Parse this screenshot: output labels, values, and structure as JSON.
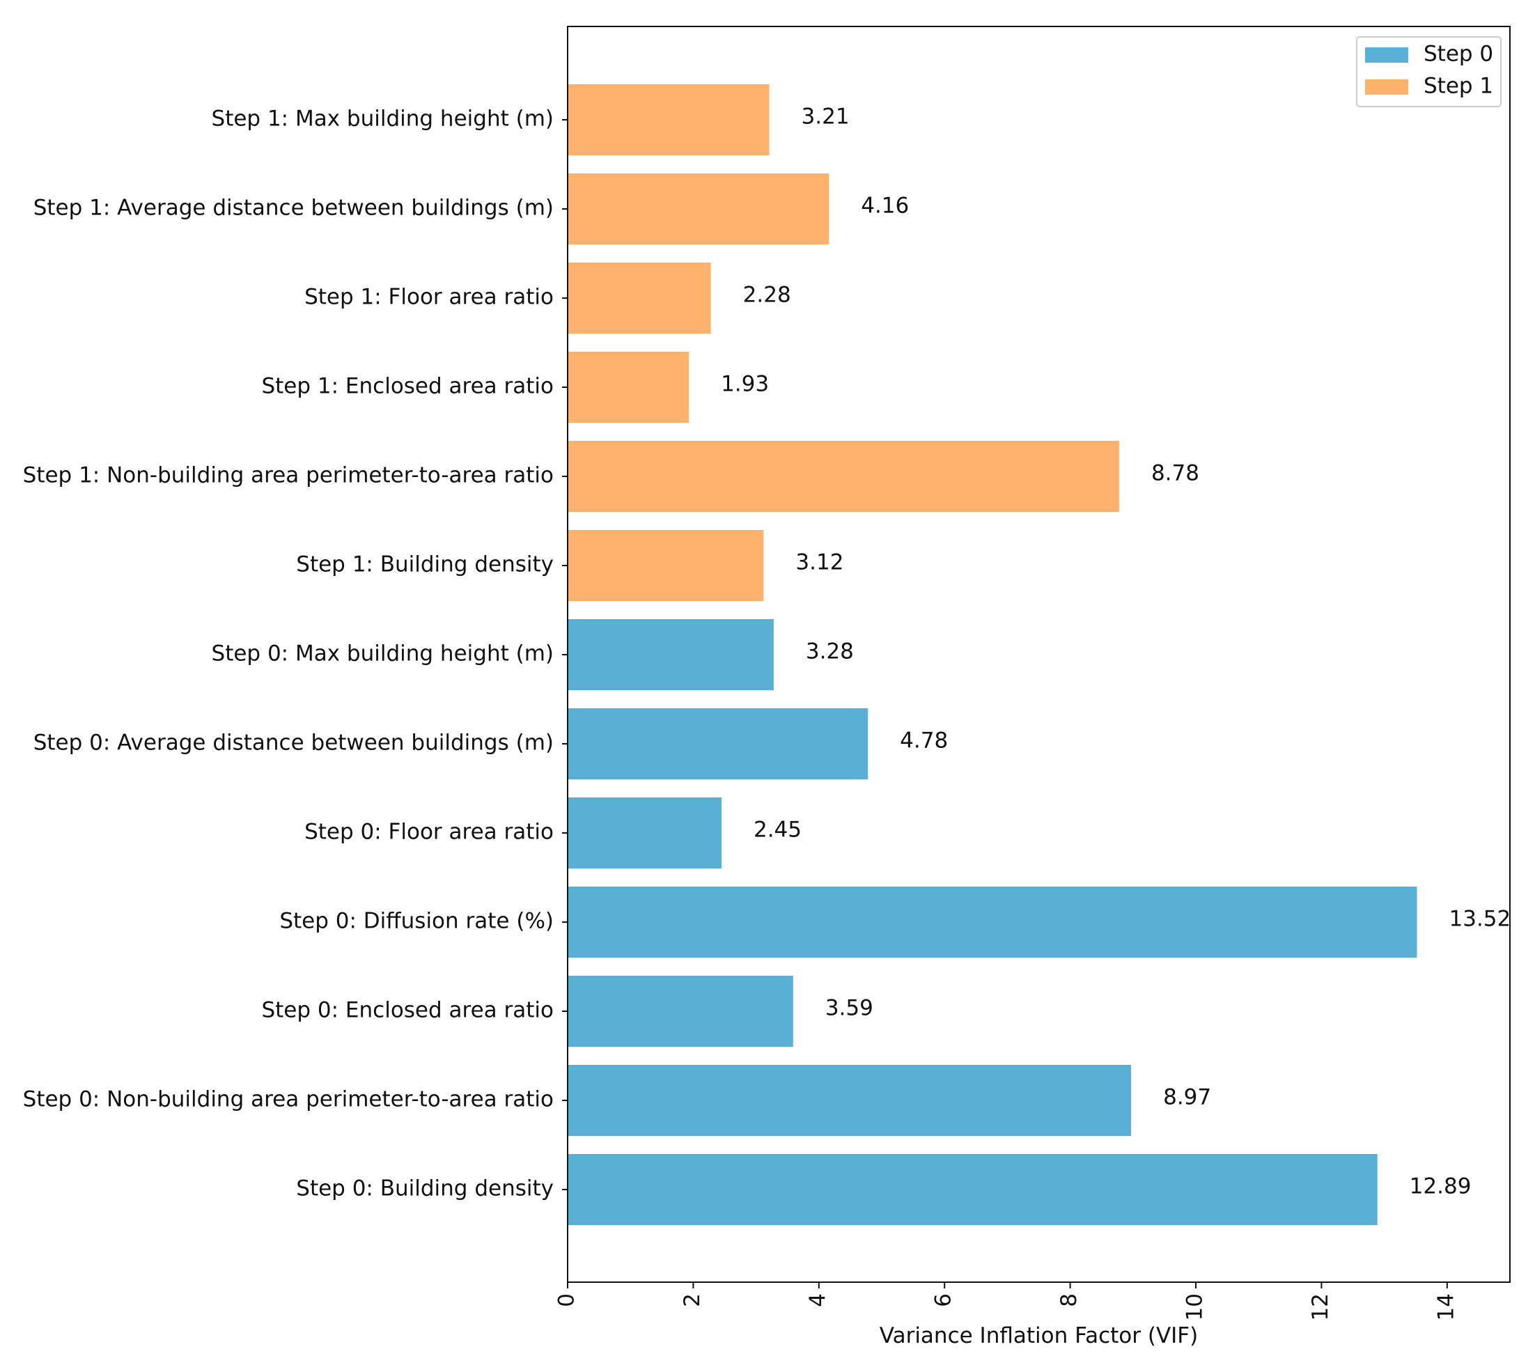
{
  "chart_data": {
    "type": "bar",
    "orientation": "horizontal",
    "title": "",
    "xlabel": "Variance Inflation Factor (VIF)",
    "ylabel": "",
    "xlim": [
      0,
      15
    ],
    "xticks": [
      0,
      2,
      4,
      6,
      8,
      10,
      12,
      14
    ],
    "xtick_labels": [
      "0",
      "2",
      "4",
      "6",
      "8",
      "10",
      "12",
      "14"
    ],
    "grid": false,
    "legend": {
      "position": "top-right",
      "entries": [
        {
          "name": "Step 0",
          "color": "#5aafd4"
        },
        {
          "name": "Step 1",
          "color": "#ffb26e"
        }
      ]
    },
    "bars": [
      {
        "category": "Step 1: Max building height (m)",
        "value": 3.21,
        "value_label": "3.21",
        "series": "Step 1"
      },
      {
        "category": "Step 1: Average distance between buildings (m)",
        "value": 4.16,
        "value_label": "4.16",
        "series": "Step 1"
      },
      {
        "category": "Step 1: Floor area ratio",
        "value": 2.28,
        "value_label": "2.28",
        "series": "Step 1"
      },
      {
        "category": "Step 1: Enclosed area ratio",
        "value": 1.93,
        "value_label": "1.93",
        "series": "Step 1"
      },
      {
        "category": "Step 1: Non-building area perimeter-to-area ratio",
        "value": 8.78,
        "value_label": "8.78",
        "series": "Step 1"
      },
      {
        "category": "Step 1: Building density",
        "value": 3.12,
        "value_label": "3.12",
        "series": "Step 1"
      },
      {
        "category": "Step 0: Max building height (m)",
        "value": 3.28,
        "value_label": "3.28",
        "series": "Step 0"
      },
      {
        "category": "Step 0: Average distance between buildings (m)",
        "value": 4.78,
        "value_label": "4.78",
        "series": "Step 0"
      },
      {
        "category": "Step 0: Floor area ratio",
        "value": 2.45,
        "value_label": "2.45",
        "series": "Step 0"
      },
      {
        "category": "Step 0: Diffusion rate (%)",
        "value": 13.52,
        "value_label": "13.52",
        "series": "Step 0"
      },
      {
        "category": "Step 0: Enclosed area ratio",
        "value": 3.59,
        "value_label": "3.59",
        "series": "Step 0"
      },
      {
        "category": "Step 0: Non-building area perimeter-to-area ratio",
        "value": 8.97,
        "value_label": "8.97",
        "series": "Step 0"
      },
      {
        "category": "Step 0: Building density",
        "value": 12.89,
        "value_label": "12.89",
        "series": "Step 0"
      }
    ]
  }
}
